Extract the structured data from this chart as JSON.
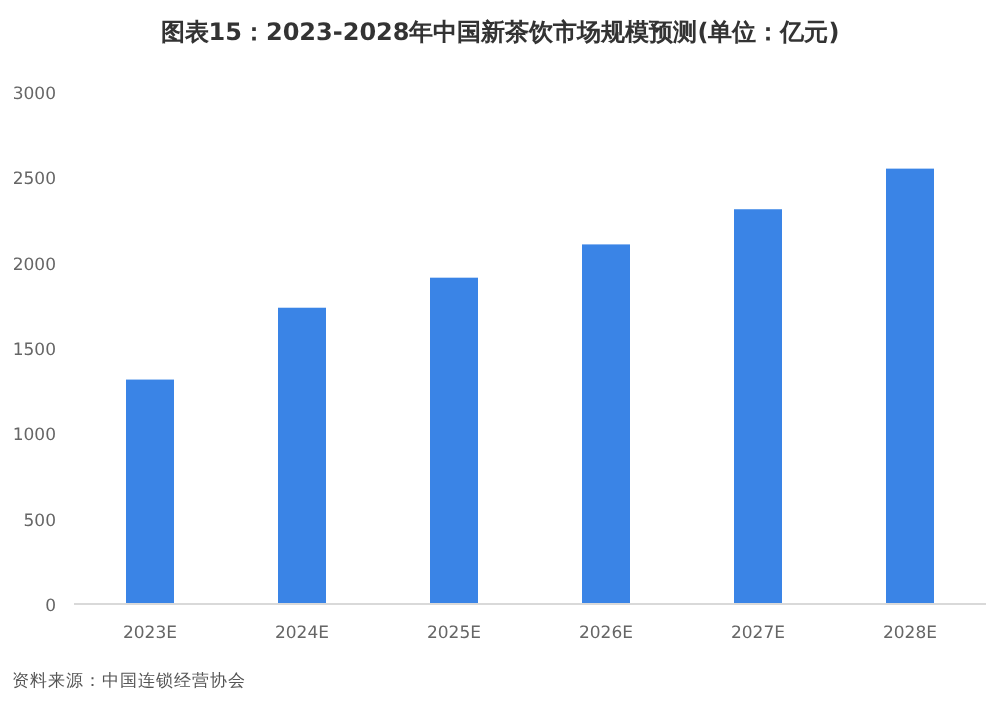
{
  "chart_data": {
    "type": "bar",
    "title": "图表15：2023-2028年中国新茶饮市场规模预测(单位：亿元)",
    "categories": [
      "2023E",
      "2024E",
      "2025E",
      "2026E",
      "2027E",
      "2028E"
    ],
    "values": [
      1315,
      1736,
      1912,
      2107,
      2313,
      2551
    ],
    "color": "#3a84e6",
    "ylim": [
      0,
      3000
    ],
    "yticks": [
      0,
      500,
      1000,
      1500,
      2000,
      2500,
      3000
    ],
    "annotations": [
      "资料来源：中国连锁经营协会"
    ]
  }
}
